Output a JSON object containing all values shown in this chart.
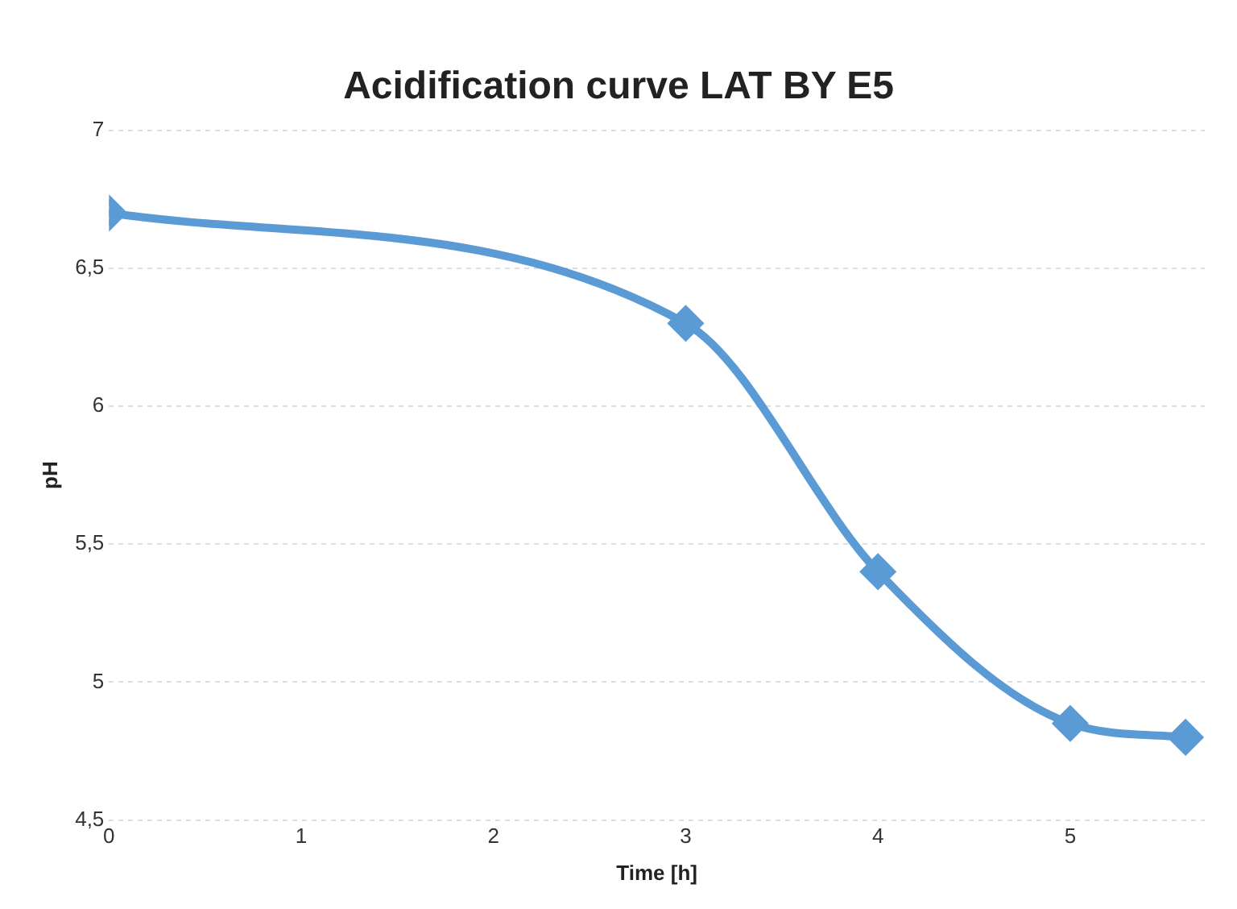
{
  "chart_data": {
    "type": "line",
    "title": "Acidification curve LAT BY E5",
    "xlabel": "Time [h]",
    "ylabel": "pH",
    "x": [
      0,
      3,
      4,
      5,
      5.6
    ],
    "series": [
      {
        "color": "#5b9bd5",
        "values": [
          6.7,
          6.3,
          5.4,
          4.85,
          4.8
        ]
      }
    ],
    "xlim": [
      0,
      5.7
    ],
    "xticks": [
      0,
      1,
      2,
      3,
      4,
      5
    ],
    "ylim": [
      4.5,
      7
    ],
    "yticks": [
      {
        "value": 4.5,
        "label": "4,5"
      },
      5,
      {
        "value": 5.5,
        "label": "5,5"
      },
      6,
      {
        "value": 6.5,
        "label": "6,5"
      },
      7
    ],
    "grid": "y",
    "legend": false,
    "marker": "diamond",
    "line_style": "solid"
  }
}
